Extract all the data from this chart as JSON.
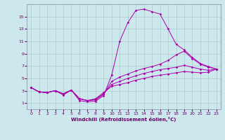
{
  "xlabel": "Windchill (Refroidissement éolien,°C)",
  "background_color": "#cce8ec",
  "line_color": "#aa00aa",
  "xlim": [
    -0.5,
    23.5
  ],
  "ylim": [
    0,
    17
  ],
  "xticks": [
    0,
    1,
    2,
    3,
    4,
    5,
    6,
    7,
    8,
    9,
    10,
    11,
    12,
    13,
    14,
    15,
    16,
    17,
    18,
    19,
    20,
    21,
    22,
    23
  ],
  "yticks": [
    1,
    3,
    5,
    7,
    9,
    11,
    13,
    15
  ],
  "series": [
    {
      "x": [
        0,
        1,
        2,
        3,
        4,
        5,
        6,
        7,
        8,
        9,
        10,
        11,
        12,
        13,
        14,
        15,
        16,
        17,
        18,
        19,
        20,
        21,
        22,
        23
      ],
      "y": [
        3.5,
        2.8,
        2.7,
        3.0,
        2.3,
        3.1,
        1.4,
        1.2,
        1.3,
        2.2,
        5.5,
        11.0,
        14.0,
        16.0,
        16.2,
        15.8,
        15.4,
        13.0,
        10.5,
        9.6,
        8.4,
        7.4,
        6.9,
        6.5
      ]
    },
    {
      "x": [
        0,
        1,
        2,
        3,
        4,
        5,
        6,
        7,
        8,
        9,
        10,
        11,
        12,
        13,
        14,
        15,
        16,
        17,
        18,
        19,
        20,
        21,
        22,
        23
      ],
      "y": [
        3.5,
        2.8,
        2.7,
        3.0,
        2.5,
        3.1,
        1.7,
        1.4,
        1.5,
        2.4,
        4.5,
        5.2,
        5.7,
        6.2,
        6.6,
        6.9,
        7.3,
        7.9,
        8.8,
        9.4,
        8.2,
        7.3,
        6.8,
        6.5
      ]
    },
    {
      "x": [
        0,
        1,
        2,
        3,
        4,
        5,
        6,
        7,
        8,
        9,
        10,
        11,
        12,
        13,
        14,
        15,
        16,
        17,
        18,
        19,
        20,
        21,
        22,
        23
      ],
      "y": [
        3.5,
        2.8,
        2.7,
        3.0,
        2.5,
        3.1,
        1.7,
        1.4,
        1.6,
        2.5,
        4.0,
        4.5,
        5.0,
        5.4,
        5.8,
        6.1,
        6.4,
        6.6,
        6.8,
        7.1,
        6.8,
        6.5,
        6.3,
        6.5
      ]
    },
    {
      "x": [
        0,
        1,
        2,
        3,
        4,
        5,
        6,
        7,
        8,
        9,
        10,
        11,
        12,
        13,
        14,
        15,
        16,
        17,
        18,
        19,
        20,
        21,
        22,
        23
      ],
      "y": [
        3.5,
        2.8,
        2.7,
        3.0,
        2.5,
        3.1,
        1.7,
        1.4,
        1.7,
        2.7,
        3.7,
        4.0,
        4.3,
        4.7,
        5.0,
        5.3,
        5.5,
        5.7,
        5.9,
        6.1,
        6.0,
        5.9,
        6.0,
        6.5
      ]
    }
  ]
}
